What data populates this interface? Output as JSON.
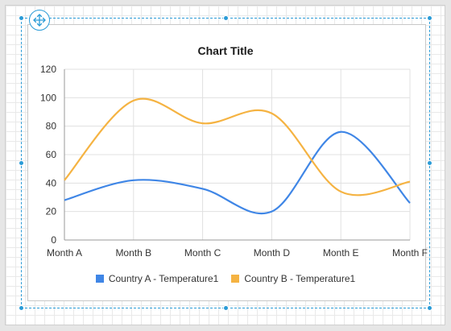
{
  "chart_data": {
    "type": "line",
    "title": "Chart Title",
    "categories": [
      "Month A",
      "Month B",
      "Month C",
      "Month D",
      "Month E",
      "Month F"
    ],
    "series": [
      {
        "name": "Country A - Temperature1",
        "values": [
          28,
          42,
          36,
          20,
          76,
          26
        ],
        "color": "#3f86e6"
      },
      {
        "name": "Country B - Temperature1",
        "values": [
          42,
          98,
          82,
          89,
          34,
          41
        ],
        "color": "#f5b342"
      }
    ],
    "ylim": [
      0,
      120
    ],
    "yticks": [
      0,
      20,
      40,
      60,
      80,
      100,
      120
    ],
    "grid": true,
    "legend_position": "bottom",
    "smooth": true
  },
  "icons": {
    "move_handle": "move-arrows-icon"
  }
}
